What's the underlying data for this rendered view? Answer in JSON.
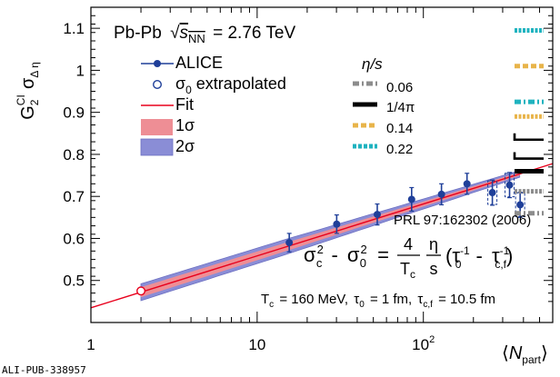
{
  "chart_data": {
    "type": "scatter",
    "x_scale": "log",
    "xlim": [
      1,
      600
    ],
    "ylim": [
      0.4,
      1.15
    ],
    "x_ticks": [
      {
        "v": 1,
        "label": "1"
      },
      {
        "v": 10,
        "label": "10"
      },
      {
        "v": 100,
        "label": "10",
        "sup": "2"
      }
    ],
    "y_ticks": [
      {
        "v": 0.5,
        "label": "0.5"
      },
      {
        "v": 0.6,
        "label": "0.6"
      },
      {
        "v": 0.7,
        "label": "0.7"
      },
      {
        "v": 0.8,
        "label": "0.8"
      },
      {
        "v": 0.9,
        "label": "0.9"
      },
      {
        "v": 1.0,
        "label": "1"
      },
      {
        "v": 1.1,
        "label": "1.1"
      }
    ],
    "ylabel": {
      "main": "G",
      "sup": "CI",
      "sub": "2",
      "sigma": "σ",
      "sigma_sub": "Δ η"
    },
    "xlabel": {
      "open": "⟨",
      "main": "N",
      "sub": "part",
      "close": "⟩"
    },
    "system_label": {
      "pre": "Pb-Pb",
      "sqrt": "√",
      "s": "s",
      "sub": "NN",
      "post": "= 2.76 TeV"
    },
    "legend": {
      "alice": "ALICE",
      "extrapolated": "σ",
      "extrapolated_sub": "0",
      "extrapolated_post": " extrapolated",
      "fit": "Fit",
      "band1": "1σ",
      "band2": "2σ"
    },
    "alice": {
      "name": "ALICE",
      "x": [
        15.6,
        30.1,
        52.8,
        85.0,
        128.5,
        183.0,
        260.0,
        330.0,
        382.0
      ],
      "y": [
        0.59,
        0.634,
        0.657,
        0.693,
        0.705,
        0.73,
        0.709,
        0.727,
        0.68
      ],
      "err": [
        0.022,
        0.022,
        0.025,
        0.028,
        0.025,
        0.025,
        0.03,
        0.03,
        0.03
      ]
    },
    "extrapolated": {
      "x": 2.0,
      "y": 0.475
    },
    "fit": {
      "x": [
        1.0,
        600.0
      ],
      "y": [
        0.435,
        0.778
      ]
    },
    "band1": {
      "x": [
        2.0,
        15.0,
        100.0,
        380.0
      ],
      "half_width": [
        0.012,
        0.01,
        0.006,
        0.004
      ]
    },
    "band2": {
      "x": [
        2.0,
        15.0,
        100.0,
        380.0
      ],
      "half_width": [
        0.02,
        0.018,
        0.012,
        0.008
      ]
    },
    "eta_s": {
      "title": "η/s",
      "entries": [
        {
          "label": "0.06",
          "color": "#8c8c8c",
          "y": 0.7
        },
        {
          "label": "1/4π",
          "color": "#000000",
          "y": 0.76
        },
        {
          "label": "0.14",
          "color": "#e8b44a",
          "y": 0.87
        },
        {
          "label": "0.22",
          "color": "#1fb3bf",
          "y": 1.1
        }
      ],
      "right_markers": [
        {
          "color": "#1fb3bf",
          "y": 1.095,
          "dash": "solid"
        },
        {
          "color": "#e8b44a",
          "y": 1.01,
          "dash": "dashed"
        },
        {
          "color": "#1fb3bf",
          "y": 0.925,
          "dash": "dashdot"
        },
        {
          "color": "#e8b44a",
          "y": 0.89,
          "dash": "solid"
        },
        {
          "color": "#000000",
          "y": 0.835,
          "dash": "bracket"
        },
        {
          "color": "#000000",
          "y": 0.79,
          "dash": "bracket"
        },
        {
          "color": "#000000",
          "y": 0.76,
          "dash": "solid"
        },
        {
          "color": "#8c8c8c",
          "y": 0.712,
          "dash": "solid"
        },
        {
          "color": "#8c8c8c",
          "y": 0.66,
          "dash": "dashdot"
        }
      ]
    },
    "reference": "PRL 97:162302 (2006)",
    "formula": {
      "sig_c": "σ",
      "c_sub": "c",
      "sq": "2",
      "minus": "-",
      "sig0": "σ",
      "zero_sub": "0",
      "eq": "=",
      "four": "4",
      "Tc": "T",
      "Tc_sub": "c",
      "eta": "η",
      "s": "s",
      "tau0": "τ",
      "tau0_sub": "0",
      "neg1": "-1",
      "mid": "-",
      "tauc": "τ",
      "tauc_sub": "c,f"
    },
    "params": {
      "tc": "T",
      "tc_sub": "c",
      "tc_val": "= 160 MeV,",
      "t0": "τ",
      "t0_sub": "0",
      "t0_val": "= 1 fm,",
      "tcf": "τ",
      "tcf_sub": "c,f",
      "tcf_val": "= 10.5 fm"
    },
    "footer": "ALI-PUB-338957",
    "colors": {
      "alice": "#1f3f99",
      "fit": "#e8001c",
      "band1": "#ee8e95",
      "band2": "#8a8dd6",
      "axis": "#000000"
    }
  }
}
